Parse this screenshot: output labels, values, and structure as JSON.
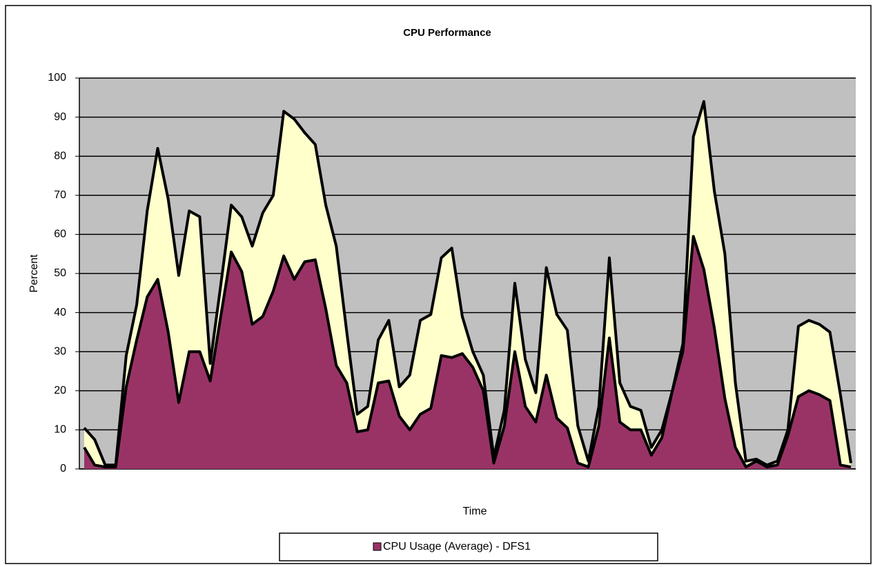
{
  "chart_data": {
    "type": "area",
    "title": "CPU Performance",
    "x_label": "Time",
    "y_label": "Percent",
    "ylim": [
      0,
      100
    ],
    "yticks": [
      0,
      10,
      20,
      30,
      40,
      50,
      60,
      70,
      80,
      90,
      100
    ],
    "grid": true,
    "series": [
      {
        "color": "#ffffcc",
        "values": [
          10.5,
          7.5,
          1,
          1,
          29,
          42,
          66,
          82,
          69,
          49.5,
          66,
          64.5,
          27,
          47,
          67.5,
          64.5,
          57,
          65.5,
          70,
          91.5,
          89.5,
          86,
          83,
          67.5,
          57,
          35,
          14,
          16,
          33,
          38,
          21,
          24,
          38,
          39.5,
          54,
          56.5,
          39,
          30,
          24,
          3,
          15,
          47.5,
          28,
          19.5,
          51.5,
          39.5,
          35.5,
          11,
          2,
          16,
          54,
          22,
          16,
          15,
          5.5,
          10,
          20,
          32,
          85,
          94,
          71,
          55,
          22,
          2,
          2.5,
          1,
          2,
          10,
          36.5,
          38,
          37,
          35,
          19,
          1.5
        ]
      },
      {
        "name": "CPU Usage (Average) - DFS1",
        "color": "#993366",
        "values": [
          5.5,
          1,
          0.5,
          0.5,
          21,
          33,
          44,
          48.5,
          35,
          17,
          30,
          30,
          22.5,
          39,
          55.5,
          50.5,
          37,
          39,
          45.5,
          54.5,
          48.5,
          53,
          53.5,
          41,
          26.5,
          22,
          9.5,
          10,
          22,
          22.5,
          13.5,
          10,
          14,
          15.5,
          29,
          28.5,
          29.5,
          26,
          20,
          1.5,
          11,
          30,
          16,
          12,
          24,
          13,
          10.5,
          1.5,
          0.5,
          11,
          33.5,
          12,
          10,
          10,
          3.5,
          8,
          20,
          30,
          59.5,
          51,
          36,
          18,
          5.5,
          0.5,
          2,
          0.5,
          1,
          8.5,
          18.5,
          20,
          19,
          17.5,
          1,
          0.5
        ]
      }
    ]
  }
}
